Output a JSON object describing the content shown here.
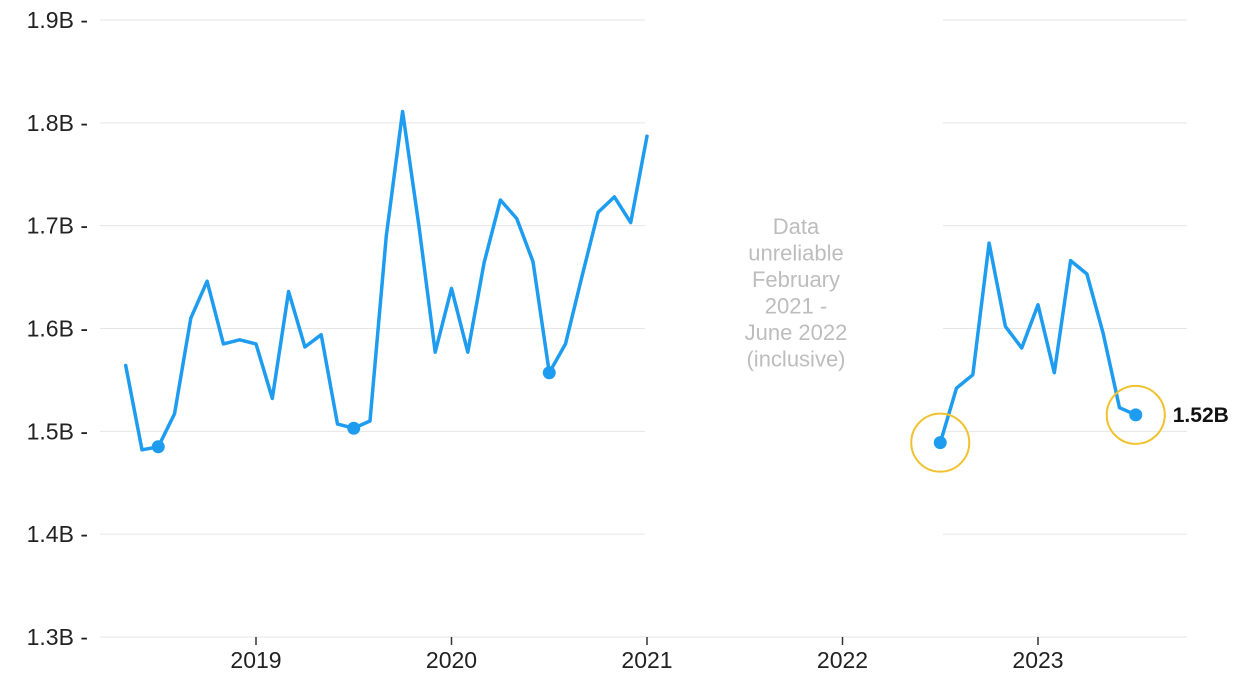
{
  "chart_data": {
    "type": "line",
    "title": "",
    "xlabel": "",
    "ylabel": "",
    "ylim": [
      1.3,
      1.9
    ],
    "y_ticks": [
      {
        "value": 1.3,
        "label": "1.3B -"
      },
      {
        "value": 1.4,
        "label": "1.4B -"
      },
      {
        "value": 1.5,
        "label": "1.5B -"
      },
      {
        "value": 1.6,
        "label": "1.6B -"
      },
      {
        "value": 1.7,
        "label": "1.7B -"
      },
      {
        "value": 1.8,
        "label": "1.8B -"
      },
      {
        "value": 1.9,
        "label": "1.9B -"
      }
    ],
    "x_ticks": [
      {
        "value": "2019-01",
        "label": "2019"
      },
      {
        "value": "2020-01",
        "label": "2020"
      },
      {
        "value": "2021-01",
        "label": "2021"
      },
      {
        "value": "2022-01",
        "label": "2022"
      },
      {
        "value": "2023-01",
        "label": "2023"
      }
    ],
    "grid": true,
    "legend": "none",
    "colors": {
      "line": "#1e9cf0",
      "highlight_ring": "#f2c12e",
      "grid": "#e6e6e6",
      "note": "#bdbdbd"
    },
    "series": [
      {
        "segments": [
          [
            {
              "x": "2018-05",
              "y": 1.564
            },
            {
              "x": "2018-06",
              "y": 1.482
            },
            {
              "x": "2018-07",
              "y": 1.485
            },
            {
              "x": "2018-08",
              "y": 1.517
            },
            {
              "x": "2018-09",
              "y": 1.61
            },
            {
              "x": "2018-10",
              "y": 1.646
            },
            {
              "x": "2018-11",
              "y": 1.585
            },
            {
              "x": "2018-12",
              "y": 1.589
            },
            {
              "x": "2019-01",
              "y": 1.585
            },
            {
              "x": "2019-02",
              "y": 1.532
            },
            {
              "x": "2019-03",
              "y": 1.636
            },
            {
              "x": "2019-04",
              "y": 1.582
            },
            {
              "x": "2019-05",
              "y": 1.594
            },
            {
              "x": "2019-06",
              "y": 1.507
            },
            {
              "x": "2019-07",
              "y": 1.503
            },
            {
              "x": "2019-08",
              "y": 1.51
            },
            {
              "x": "2019-09",
              "y": 1.69
            },
            {
              "x": "2019-10",
              "y": 1.811
            },
            {
              "x": "2019-11",
              "y": 1.7
            },
            {
              "x": "2019-12",
              "y": 1.577
            },
            {
              "x": "2020-01",
              "y": 1.639
            },
            {
              "x": "2020-02",
              "y": 1.577
            },
            {
              "x": "2020-03",
              "y": 1.664
            },
            {
              "x": "2020-04",
              "y": 1.725
            },
            {
              "x": "2020-05",
              "y": 1.707
            },
            {
              "x": "2020-06",
              "y": 1.665
            },
            {
              "x": "2020-07",
              "y": 1.557
            },
            {
              "x": "2020-08",
              "y": 1.585
            },
            {
              "x": "2020-09",
              "y": 1.65
            },
            {
              "x": "2020-10",
              "y": 1.713
            },
            {
              "x": "2020-11",
              "y": 1.728
            },
            {
              "x": "2020-12",
              "y": 1.703
            },
            {
              "x": "2021-01",
              "y": 1.787
            }
          ],
          [
            {
              "x": "2022-07",
              "y": 1.489
            },
            {
              "x": "2022-08",
              "y": 1.542
            },
            {
              "x": "2022-09",
              "y": 1.555
            },
            {
              "x": "2022-10",
              "y": 1.683
            },
            {
              "x": "2022-11",
              "y": 1.602
            },
            {
              "x": "2022-12",
              "y": 1.581
            },
            {
              "x": "2023-01",
              "y": 1.623
            },
            {
              "x": "2023-02",
              "y": 1.557
            },
            {
              "x": "2023-03",
              "y": 1.666
            },
            {
              "x": "2023-04",
              "y": 1.653
            },
            {
              "x": "2023-05",
              "y": 1.595
            },
            {
              "x": "2023-06",
              "y": 1.523
            },
            {
              "x": "2023-07",
              "y": 1.516
            }
          ]
        ]
      }
    ],
    "markers": [
      {
        "x": "2018-07",
        "y": 1.485,
        "ring": false
      },
      {
        "x": "2019-07",
        "y": 1.503,
        "ring": false
      },
      {
        "x": "2020-07",
        "y": 1.557,
        "ring": false
      },
      {
        "x": "2022-07",
        "y": 1.489,
        "ring": true
      },
      {
        "x": "2023-07",
        "y": 1.516,
        "ring": true
      }
    ],
    "gap_note": {
      "from": "2021-02",
      "to": "2022-06",
      "lines": [
        "Data",
        "unreliable",
        "February",
        "2021 -",
        "June 2022",
        "(inclusive)"
      ]
    },
    "end_label": {
      "x": "2023-07",
      "y": 1.516,
      "text": "1.52B"
    }
  }
}
